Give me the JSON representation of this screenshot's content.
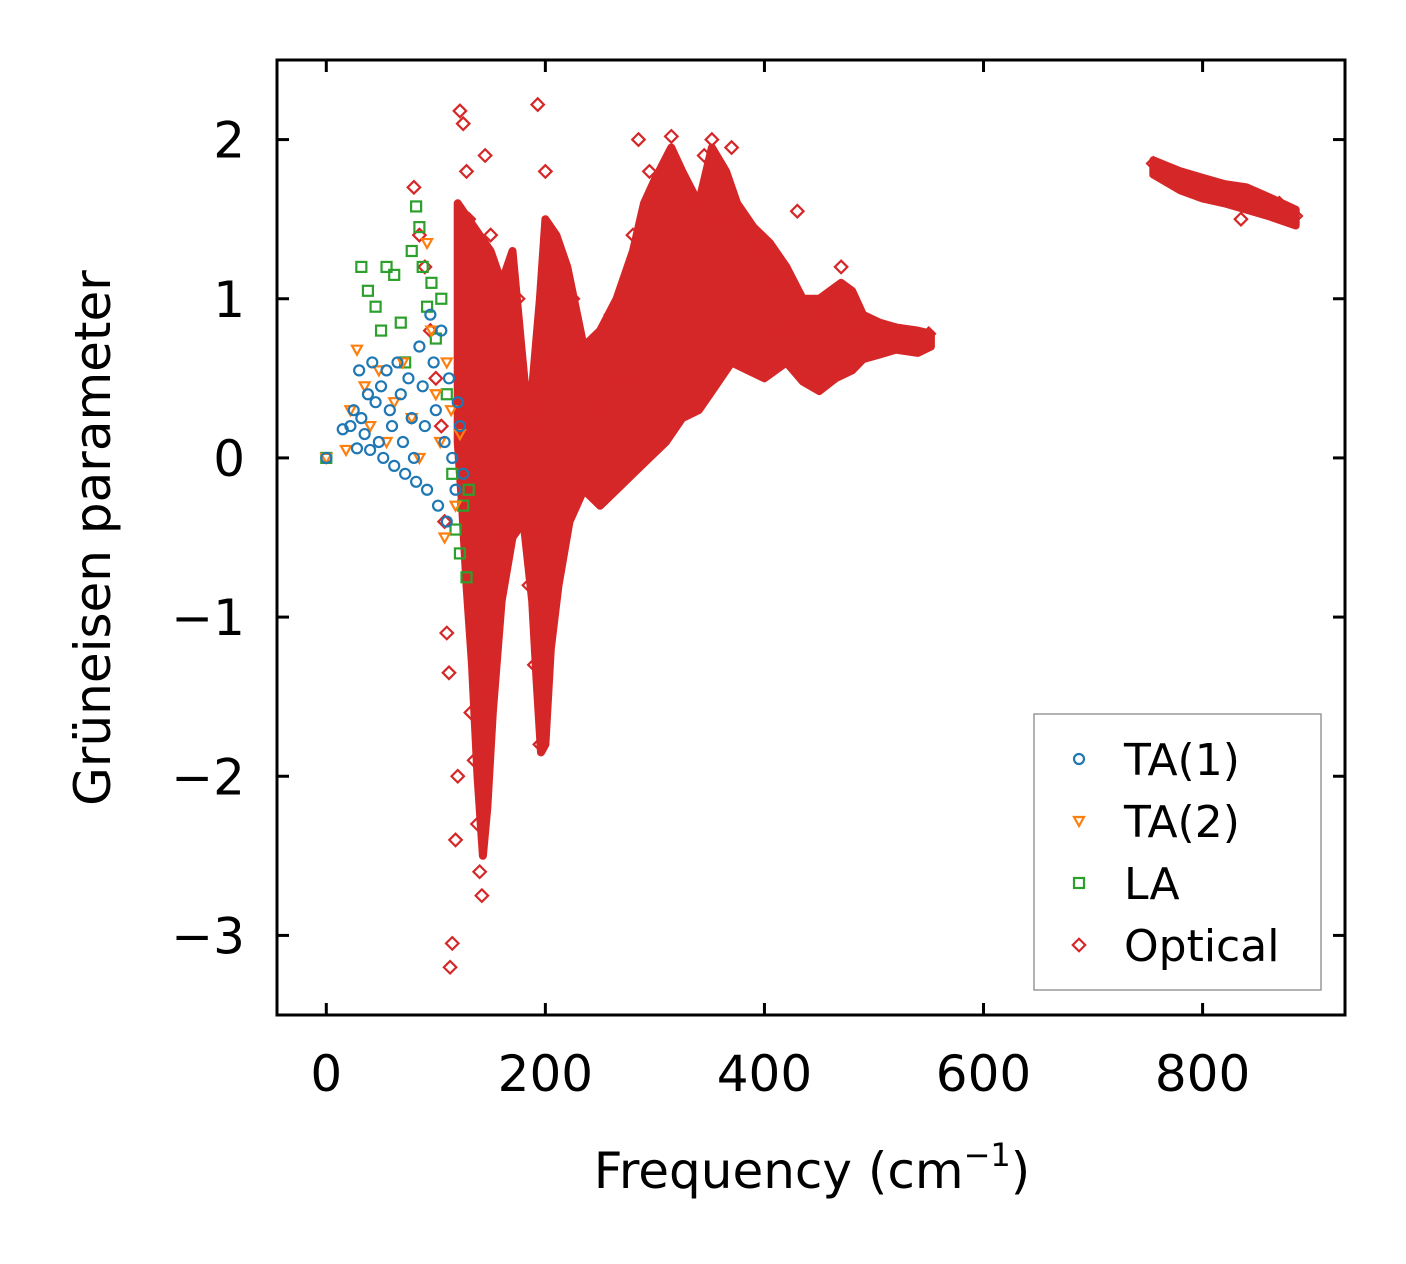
{
  "chart_data": {
    "type": "scatter",
    "title": "",
    "xlabel": "Frequency (cm",
    "xlabel_superscript": "−1",
    "xlabel_suffix": ")",
    "ylabel": "Grüneisen parameter",
    "xlim": [
      -45,
      930
    ],
    "ylim": [
      -3.5,
      2.5
    ],
    "x_ticks": [
      0,
      200,
      400,
      600,
      800
    ],
    "x_tick_labels": [
      "0",
      "200",
      "400",
      "600",
      "800"
    ],
    "y_ticks": [
      -3,
      -2,
      -1,
      0,
      1,
      2
    ],
    "y_tick_labels": [
      "−3",
      "−2",
      "−1",
      "0",
      "1",
      "2"
    ],
    "legend_position": "bottom-right",
    "series": [
      {
        "name": "TA(1)",
        "marker": "circle",
        "color": "#1f77b4",
        "points": [
          [
            0,
            0
          ],
          [
            15,
            0.18
          ],
          [
            22,
            0.2
          ],
          [
            25,
            0.3
          ],
          [
            28,
            0.06
          ],
          [
            30,
            0.55
          ],
          [
            32,
            0.25
          ],
          [
            35,
            0.15
          ],
          [
            38,
            0.4
          ],
          [
            40,
            0.05
          ],
          [
            42,
            0.6
          ],
          [
            45,
            0.35
          ],
          [
            48,
            0.1
          ],
          [
            50,
            0.45
          ],
          [
            52,
            0.0
          ],
          [
            55,
            0.55
          ],
          [
            58,
            0.3
          ],
          [
            60,
            0.2
          ],
          [
            62,
            -0.05
          ],
          [
            65,
            0.6
          ],
          [
            68,
            0.4
          ],
          [
            70,
            0.1
          ],
          [
            72,
            -0.1
          ],
          [
            75,
            0.5
          ],
          [
            78,
            0.25
          ],
          [
            80,
            0.0
          ],
          [
            82,
            -0.15
          ],
          [
            85,
            0.7
          ],
          [
            88,
            0.45
          ],
          [
            90,
            0.2
          ],
          [
            92,
            -0.2
          ],
          [
            95,
            0.9
          ],
          [
            98,
            0.6
          ],
          [
            100,
            0.3
          ],
          [
            102,
            -0.3
          ],
          [
            105,
            0.8
          ],
          [
            108,
            0.1
          ],
          [
            110,
            -0.4
          ],
          [
            112,
            0.5
          ],
          [
            115,
            0.0
          ],
          [
            118,
            -0.2
          ],
          [
            120,
            0.35
          ],
          [
            122,
            0.2
          ],
          [
            125,
            -0.1
          ]
        ]
      },
      {
        "name": "TA(2)",
        "marker": "triangle-down",
        "color": "#ff7f0e",
        "points": [
          [
            0,
            0
          ],
          [
            18,
            0.05
          ],
          [
            22,
            0.3
          ],
          [
            28,
            0.68
          ],
          [
            35,
            0.45
          ],
          [
            40,
            0.2
          ],
          [
            48,
            0.55
          ],
          [
            55,
            0.1
          ],
          [
            62,
            0.35
          ],
          [
            70,
            0.6
          ],
          [
            78,
            0.25
          ],
          [
            85,
            0.0
          ],
          [
            92,
            1.35
          ],
          [
            96,
            0.8
          ],
          [
            100,
            0.4
          ],
          [
            104,
            0.1
          ],
          [
            108,
            -0.5
          ],
          [
            110,
            0.6
          ],
          [
            114,
            0.3
          ],
          [
            118,
            -0.3
          ],
          [
            122,
            0.15
          ]
        ]
      },
      {
        "name": "LA",
        "marker": "square",
        "color": "#2ca02c",
        "points": [
          [
            0,
            0
          ],
          [
            32,
            1.2
          ],
          [
            38,
            1.05
          ],
          [
            45,
            0.95
          ],
          [
            50,
            0.8
          ],
          [
            55,
            1.2
          ],
          [
            62,
            1.15
          ],
          [
            68,
            0.85
          ],
          [
            72,
            0.6
          ],
          [
            78,
            1.3
          ],
          [
            82,
            1.58
          ],
          [
            85,
            1.45
          ],
          [
            88,
            1.2
          ],
          [
            92,
            0.95
          ],
          [
            96,
            1.1
          ],
          [
            100,
            0.75
          ],
          [
            105,
            1.0
          ],
          [
            110,
            0.4
          ],
          [
            115,
            -0.1
          ],
          [
            118,
            -0.45
          ],
          [
            122,
            -0.6
          ],
          [
            125,
            -0.3
          ],
          [
            128,
            -0.75
          ],
          [
            130,
            -0.2
          ]
        ]
      },
      {
        "name": "Optical",
        "marker": "diamond",
        "color": "#d62728",
        "points": [
          [
            80,
            1.7
          ],
          [
            85,
            1.4
          ],
          [
            90,
            1.2
          ],
          [
            95,
            0.8
          ],
          [
            100,
            0.5
          ],
          [
            105,
            0.2
          ],
          [
            108,
            -0.4
          ],
          [
            110,
            -1.1
          ],
          [
            112,
            -1.35
          ],
          [
            113,
            -3.2
          ],
          [
            115,
            -3.05
          ],
          [
            118,
            -2.4
          ],
          [
            120,
            -2.0
          ],
          [
            122,
            2.18
          ],
          [
            125,
            2.1
          ],
          [
            128,
            1.8
          ],
          [
            130,
            1.5
          ],
          [
            132,
            -1.6
          ],
          [
            135,
            -1.9
          ],
          [
            138,
            -2.3
          ],
          [
            140,
            -2.6
          ],
          [
            142,
            -2.75
          ],
          [
            145,
            1.9
          ],
          [
            150,
            1.4
          ],
          [
            155,
            0.8
          ],
          [
            160,
            0.3
          ],
          [
            165,
            -0.5
          ],
          [
            170,
            0.5
          ],
          [
            175,
            1.0
          ],
          [
            180,
            0.2
          ],
          [
            185,
            -0.8
          ],
          [
            190,
            -1.3
          ],
          [
            193,
            2.22
          ],
          [
            195,
            -1.8
          ],
          [
            198,
            -1.6
          ],
          [
            200,
            1.8
          ],
          [
            205,
            1.2
          ],
          [
            210,
            0.6
          ],
          [
            215,
            0.0
          ],
          [
            220,
            0.8
          ],
          [
            225,
            1.0
          ],
          [
            230,
            0.5
          ],
          [
            240,
            -0.2
          ],
          [
            250,
            0.3
          ],
          [
            260,
            0.9
          ],
          [
            270,
            0.5
          ],
          [
            280,
            1.4
          ],
          [
            285,
            2.0
          ],
          [
            295,
            1.8
          ],
          [
            300,
            1.0
          ],
          [
            310,
            1.6
          ],
          [
            315,
            2.02
          ],
          [
            325,
            1.7
          ],
          [
            335,
            1.3
          ],
          [
            345,
            1.9
          ],
          [
            352,
            2.0
          ],
          [
            360,
            1.5
          ],
          [
            370,
            1.95
          ],
          [
            380,
            1.4
          ],
          [
            390,
            1.0
          ],
          [
            400,
            1.3
          ],
          [
            410,
            1.1
          ],
          [
            420,
            0.8
          ],
          [
            430,
            1.55
          ],
          [
            440,
            0.7
          ],
          [
            450,
            0.5
          ],
          [
            460,
            0.9
          ],
          [
            470,
            1.2
          ],
          [
            480,
            1.0
          ],
          [
            490,
            0.8
          ],
          [
            500,
            0.75
          ],
          [
            510,
            0.7
          ],
          [
            520,
            0.8
          ],
          [
            530,
            0.75
          ],
          [
            540,
            0.7
          ],
          [
            550,
            0.78
          ],
          [
            755,
            1.85
          ],
          [
            770,
            1.8
          ],
          [
            790,
            1.75
          ],
          [
            810,
            1.7
          ],
          [
            830,
            1.68
          ],
          [
            835,
            1.5
          ],
          [
            850,
            1.65
          ],
          [
            870,
            1.6
          ],
          [
            885,
            1.52
          ]
        ]
      }
    ]
  }
}
